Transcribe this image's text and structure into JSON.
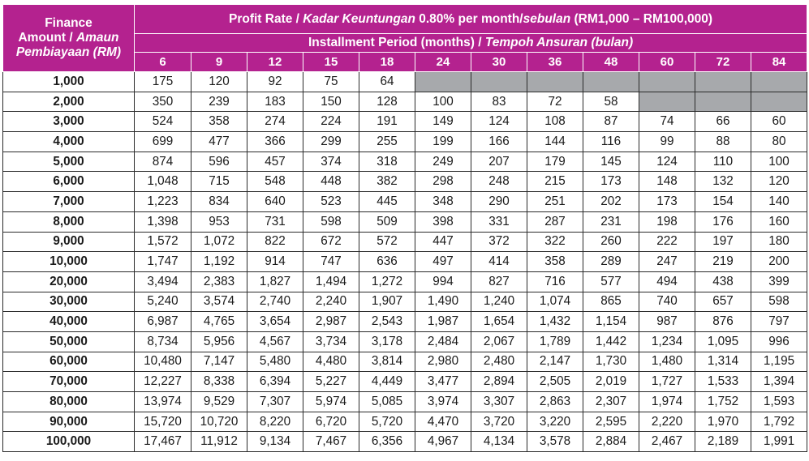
{
  "header": {
    "amount_label_line1": "Finance",
    "amount_label_line2_plain": "Amount / ",
    "amount_label_line2_italic": "Amaun",
    "amount_label_line3": "Pembiayaan (RM)",
    "profit_rate_plain_1": "Profit Rate / ",
    "profit_rate_italic_1": "Kadar Keuntungan",
    "profit_rate_plain_2": " 0.80% per month/",
    "profit_rate_italic_2": "sebulan",
    "profit_rate_plain_3": " (RM1,000 – RM100,000)",
    "period_plain": "Installment Period (months) / ",
    "period_italic": "Tempoh Ansuran (bulan)"
  },
  "months": [
    "6",
    "9",
    "12",
    "15",
    "18",
    "24",
    "30",
    "36",
    "48",
    "60",
    "72",
    "84"
  ],
  "colors": {
    "header_bg": "#b4228f",
    "header_text": "#ffffff",
    "na_cell": "#a7a9ac"
  },
  "rows": [
    {
      "amount": "1,000",
      "values": [
        "175",
        "120",
        "92",
        "75",
        "64",
        null,
        null,
        null,
        null,
        null,
        null,
        null
      ]
    },
    {
      "amount": "2,000",
      "values": [
        "350",
        "239",
        "183",
        "150",
        "128",
        "100",
        "83",
        "72",
        "58",
        null,
        null,
        null
      ]
    },
    {
      "amount": "3,000",
      "values": [
        "524",
        "358",
        "274",
        "224",
        "191",
        "149",
        "124",
        "108",
        "87",
        "74",
        "66",
        "60"
      ]
    },
    {
      "amount": "4,000",
      "values": [
        "699",
        "477",
        "366",
        "299",
        "255",
        "199",
        "166",
        "144",
        "116",
        "99",
        "88",
        "80"
      ]
    },
    {
      "amount": "5,000",
      "values": [
        "874",
        "596",
        "457",
        "374",
        "318",
        "249",
        "207",
        "179",
        "145",
        "124",
        "110",
        "100"
      ]
    },
    {
      "amount": "6,000",
      "values": [
        "1,048",
        "715",
        "548",
        "448",
        "382",
        "298",
        "248",
        "215",
        "173",
        "148",
        "132",
        "120"
      ]
    },
    {
      "amount": "7,000",
      "values": [
        "1,223",
        "834",
        "640",
        "523",
        "445",
        "348",
        "290",
        "251",
        "202",
        "173",
        "154",
        "140"
      ]
    },
    {
      "amount": "8,000",
      "values": [
        "1,398",
        "953",
        "731",
        "598",
        "509",
        "398",
        "331",
        "287",
        "231",
        "198",
        "176",
        "160"
      ]
    },
    {
      "amount": "9,000",
      "values": [
        "1,572",
        "1,072",
        "822",
        "672",
        "572",
        "447",
        "372",
        "322",
        "260",
        "222",
        "197",
        "180"
      ]
    },
    {
      "amount": "10,000",
      "values": [
        "1,747",
        "1,192",
        "914",
        "747",
        "636",
        "497",
        "414",
        "358",
        "289",
        "247",
        "219",
        "200"
      ]
    },
    {
      "amount": "20,000",
      "values": [
        "3,494",
        "2,383",
        "1,827",
        "1,494",
        "1,272",
        "994",
        "827",
        "716",
        "577",
        "494",
        "438",
        "399"
      ]
    },
    {
      "amount": "30,000",
      "values": [
        "5,240",
        "3,574",
        "2,740",
        "2,240",
        "1,907",
        "1,490",
        "1,240",
        "1,074",
        "865",
        "740",
        "657",
        "598"
      ]
    },
    {
      "amount": "40,000",
      "values": [
        "6,987",
        "4,765",
        "3,654",
        "2,987",
        "2,543",
        "1,987",
        "1,654",
        "1,432",
        "1,154",
        "987",
        "876",
        "797"
      ]
    },
    {
      "amount": "50,000",
      "values": [
        "8,734",
        "5,956",
        "4,567",
        "3,734",
        "3,178",
        "2,484",
        "2,067",
        "1,789",
        "1,442",
        "1,234",
        "1,095",
        "996"
      ]
    },
    {
      "amount": "60,000",
      "values": [
        "10,480",
        "7,147",
        "5,480",
        "4,480",
        "3,814",
        "2,980",
        "2,480",
        "2,147",
        "1,730",
        "1,480",
        "1,314",
        "1,195"
      ]
    },
    {
      "amount": "70,000",
      "values": [
        "12,227",
        "8,338",
        "6,394",
        "5,227",
        "4,449",
        "3,477",
        "2,894",
        "2,505",
        "2,019",
        "1,727",
        "1,533",
        "1,394"
      ]
    },
    {
      "amount": "80,000",
      "values": [
        "13,974",
        "9,529",
        "7,307",
        "5,974",
        "5,085",
        "3,974",
        "3,307",
        "2,863",
        "2,307",
        "1,974",
        "1,752",
        "1,593"
      ]
    },
    {
      "amount": "90,000",
      "values": [
        "15,720",
        "10,720",
        "8,220",
        "6,720",
        "5,720",
        "4,470",
        "3,720",
        "3,220",
        "2,595",
        "2,220",
        "1,970",
        "1,792"
      ]
    },
    {
      "amount": "100,000",
      "values": [
        "17,467",
        "11,912",
        "9,134",
        "7,467",
        "6,356",
        "4,967",
        "4,134",
        "3,578",
        "2,884",
        "2,467",
        "2,189",
        "1,991"
      ]
    }
  ]
}
